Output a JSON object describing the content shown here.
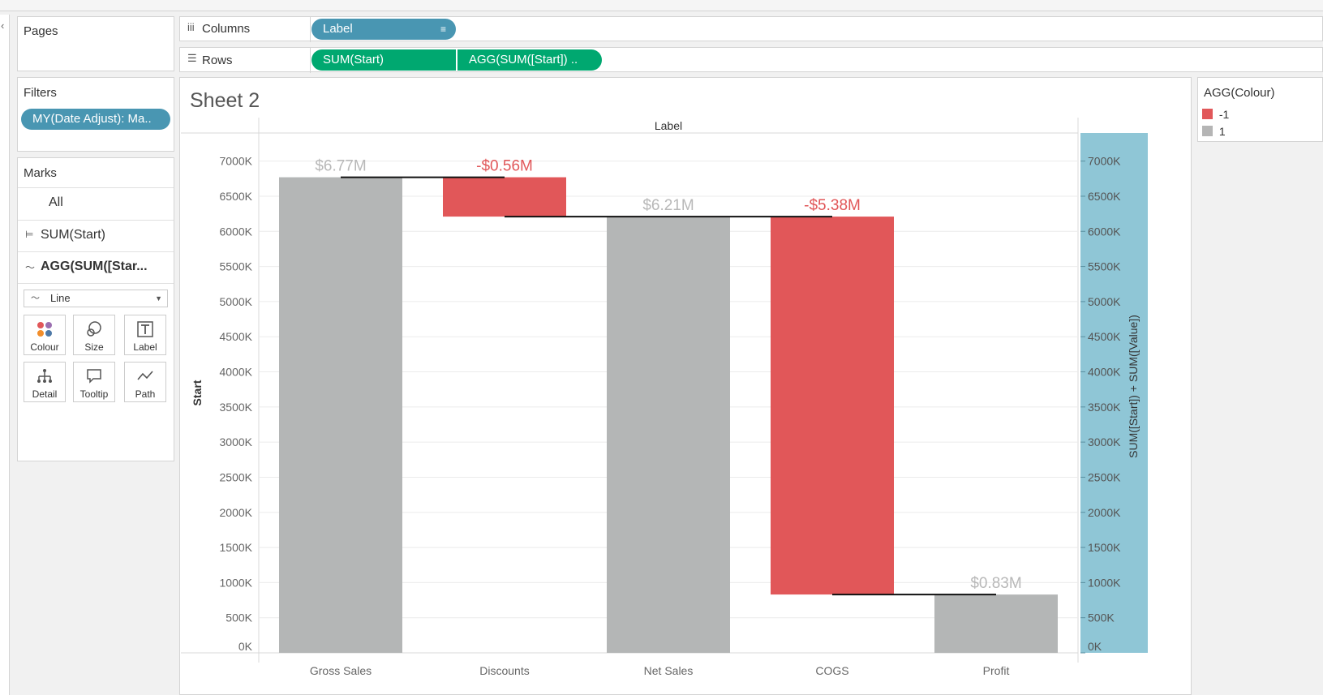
{
  "shelves": {
    "pages_label": "Pages",
    "columns_label": "Columns",
    "rows_label": "Rows",
    "columns_pills": [
      "Label"
    ],
    "rows_pills": [
      "SUM(Start)",
      "AGG(SUM([Start]) .."
    ]
  },
  "filters": {
    "title": "Filters",
    "items": [
      "MY(Date Adjust): Ma.."
    ]
  },
  "marks": {
    "title": "Marks",
    "all_label": "All",
    "cards": [
      "SUM(Start)",
      "AGG(SUM([Star..."
    ],
    "mark_type": "Line",
    "buttons": [
      "Colour",
      "Size",
      "Label",
      "Detail",
      "Tooltip",
      "Path"
    ]
  },
  "sheet": {
    "title": "Sheet 2"
  },
  "legend": {
    "title": "AGG(Colour)",
    "items": [
      {
        "label": "-1",
        "color": "#e15759"
      },
      {
        "label": "1",
        "color": "#b5b5b5"
      }
    ]
  },
  "colors": {
    "gray_bar": "#b4b6b6",
    "red_bar": "#e15759",
    "gray_label": "#b8b8b8",
    "red_label": "#e15759",
    "pill_blue": "#4996b2",
    "pill_green": "#00a870",
    "dual_axis": "#8fc6d6"
  },
  "chart_data": {
    "type": "bar",
    "subtype": "waterfall",
    "column_header": "Label",
    "categories": [
      "Gross Sales",
      "Discounts",
      "Net Sales",
      "COGS",
      "Profit"
    ],
    "bar_start": [
      0,
      6210,
      0,
      830,
      0
    ],
    "bar_end": [
      6770,
      6770,
      6210,
      6210,
      830
    ],
    "bar_colour": [
      1,
      -1,
      1,
      -1,
      1
    ],
    "value_labels": [
      "$6.77M",
      "-$0.56M",
      "$6.21M",
      "-$5.38M",
      "$0.83M"
    ],
    "connector_levels": [
      6770,
      6210,
      6210,
      830
    ],
    "ylabel_left": "Start",
    "ylabel_right": "SUM([Start]) + SUM([Value])",
    "ylim": [
      0,
      7400
    ],
    "yticks": [
      0,
      500,
      1000,
      1500,
      2000,
      2500,
      3000,
      3500,
      4000,
      4500,
      5000,
      5500,
      6000,
      6500,
      7000
    ],
    "ytick_labels": [
      "0K",
      "500K",
      "1000K",
      "1500K",
      "2000K",
      "2500K",
      "3000K",
      "3500K",
      "4000K",
      "4500K",
      "5000K",
      "5500K",
      "6000K",
      "6500K",
      "7000K"
    ],
    "grid": true
  }
}
